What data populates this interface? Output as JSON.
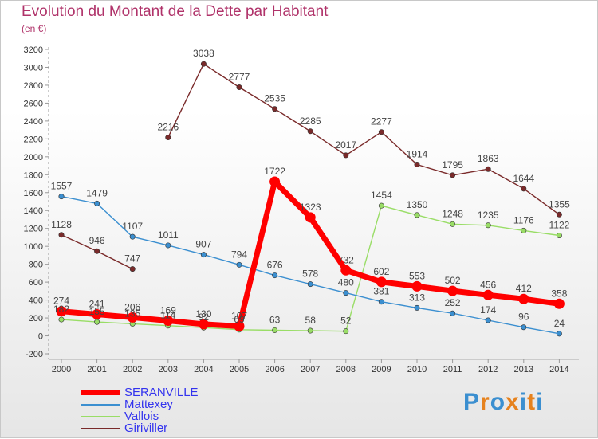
{
  "title": "Evolution du Montant de la Dette par Habitant",
  "subtitle": "(en €)",
  "brand": "Proxiti",
  "chart_data": {
    "type": "line",
    "title": "Evolution du Montant de la Dette par Habitant",
    "ylabel": "(en €)",
    "xlabel": "",
    "ylim": [
      -200,
      3200
    ],
    "yticks": [
      -200,
      0,
      200,
      400,
      600,
      800,
      1000,
      1200,
      1400,
      1600,
      1800,
      2000,
      2200,
      2400,
      2600,
      2800,
      3000,
      3200
    ],
    "grid": false,
    "legend_position": "bottom-left",
    "categories": [
      "2000",
      "2001",
      "2002",
      "2003",
      "2004",
      "2005",
      "2006",
      "2007",
      "2008",
      "2009",
      "2010",
      "2011",
      "2012",
      "2013",
      "2014"
    ],
    "series": [
      {
        "name": "SERANVILLE",
        "color": "#ff0000",
        "values": [
          274,
          241,
          206,
          169,
          130,
          107,
          1722,
          1323,
          732,
          602,
          553,
          502,
          456,
          412,
          358
        ]
      },
      {
        "name": "Mattexey",
        "color": "#3b8fd0",
        "values": [
          1557,
          1479,
          1107,
          1011,
          907,
          794,
          676,
          578,
          480,
          381,
          313,
          252,
          174,
          96,
          24
        ]
      },
      {
        "name": "Vallois",
        "color": "#99dd66",
        "values": [
          182,
          155,
          135,
          114,
          92,
          69,
          63,
          58,
          52,
          1454,
          1350,
          1248,
          1235,
          1176,
          1122
        ]
      },
      {
        "name": "Giriviller",
        "color": "#7a2a2a",
        "values": [
          1128,
          946,
          747,
          null,
          null,
          null,
          null,
          null,
          null,
          null,
          null,
          null,
          null,
          null,
          null
        ]
      },
      {
        "name": "Giriviller",
        "color": "#7a2a2a",
        "legend": false,
        "values": [
          null,
          null,
          null,
          2216,
          3038,
          2777,
          2535,
          2285,
          2017,
          2277,
          1914,
          1795,
          1863,
          1644,
          1355
        ]
      }
    ]
  }
}
